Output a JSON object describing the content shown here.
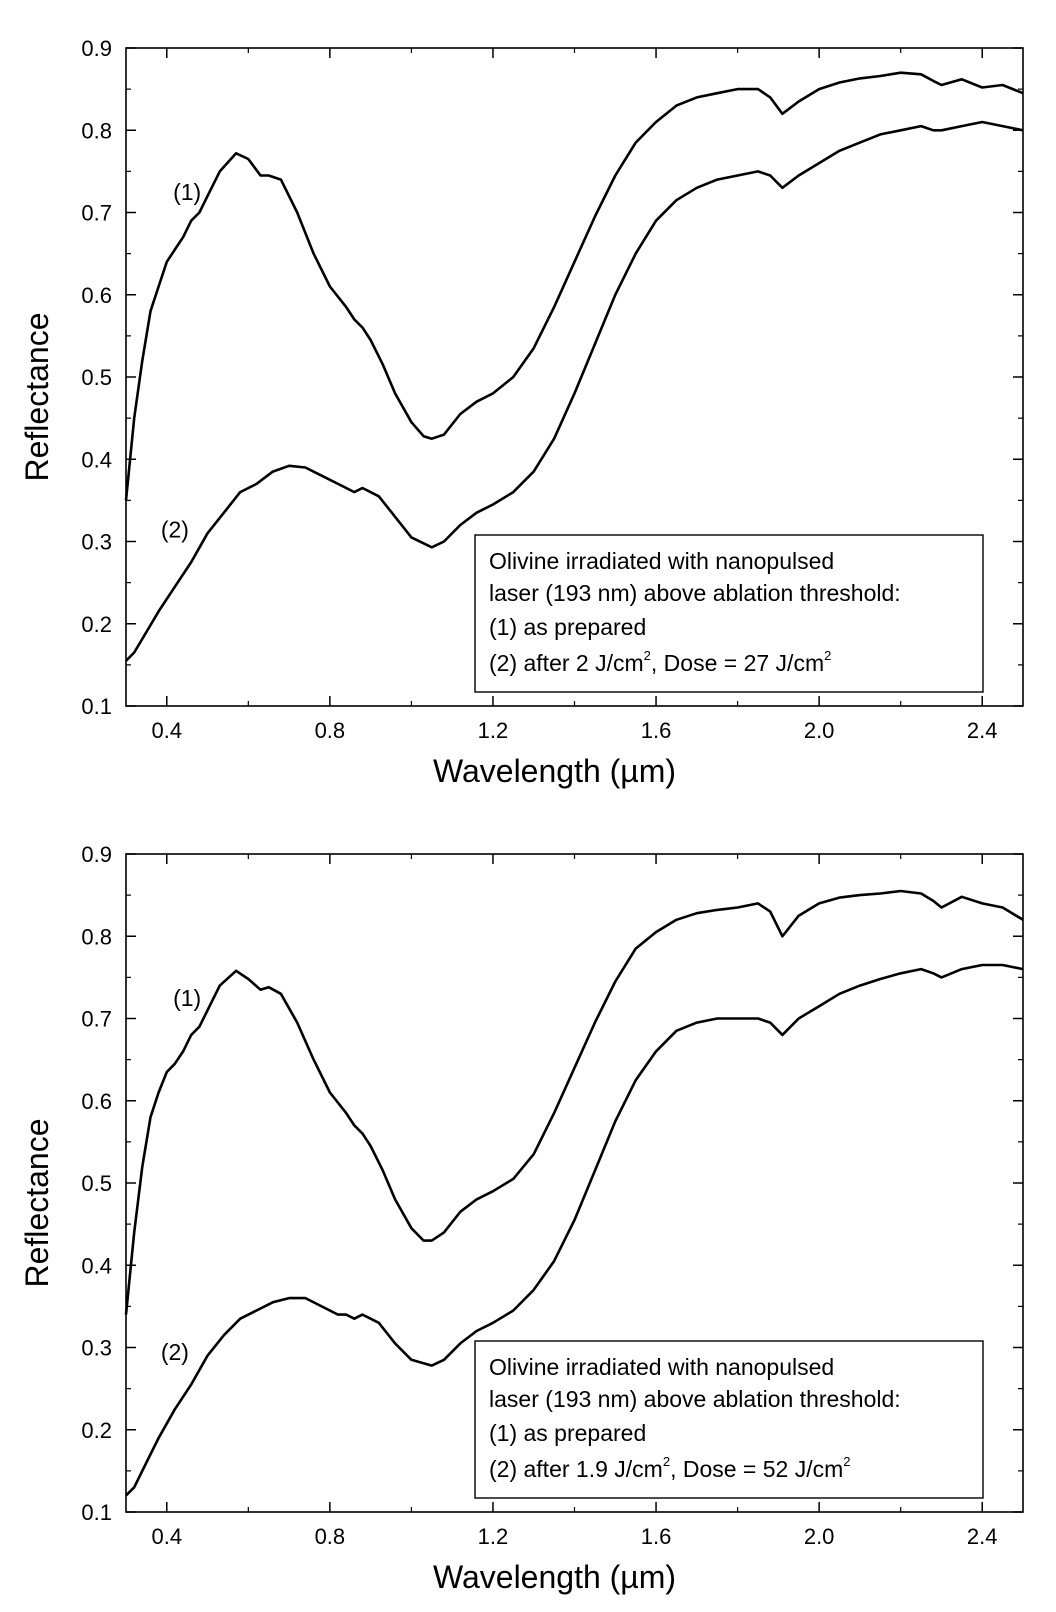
{
  "chart_data": [
    {
      "type": "line",
      "title": "",
      "xlabel": "Wavelength (µm)",
      "ylabel": "Reflectance",
      "xlim": [
        0.3,
        2.5
      ],
      "ylim": [
        0.1,
        0.9
      ],
      "xticks": [
        "0.4",
        "0.8",
        "1.2",
        "1.6",
        "2.0",
        "2.4"
      ],
      "yticks": [
        "0.1",
        "0.2",
        "0.3",
        "0.4",
        "0.5",
        "0.6",
        "0.7",
        "0.8",
        "0.9"
      ],
      "grid": false,
      "legend": {
        "placement": "bottom-right",
        "lines": [
          "Olivine irradiated with nanopulsed",
          "laser (193 nm) above ablation threshold:",
          "(1) as prepared"
        ],
        "line4": {
          "a": "(2) after 2 J/cm",
          "b": ", Dose = 27 J/cm",
          "sup": "2"
        }
      },
      "series": [
        {
          "name": "(1)",
          "label_at": [
            0.45,
            0.715
          ],
          "x": [
            0.3,
            0.32,
            0.34,
            0.36,
            0.38,
            0.4,
            0.42,
            0.44,
            0.46,
            0.48,
            0.5,
            0.53,
            0.57,
            0.6,
            0.63,
            0.65,
            0.68,
            0.72,
            0.76,
            0.8,
            0.84,
            0.86,
            0.88,
            0.9,
            0.93,
            0.96,
            1.0,
            1.03,
            1.05,
            1.08,
            1.12,
            1.16,
            1.2,
            1.25,
            1.3,
            1.35,
            1.4,
            1.45,
            1.5,
            1.55,
            1.6,
            1.65,
            1.7,
            1.75,
            1.8,
            1.85,
            1.88,
            1.91,
            1.95,
            2.0,
            2.05,
            2.1,
            2.15,
            2.2,
            2.25,
            2.28,
            2.3,
            2.35,
            2.4,
            2.45,
            2.5
          ],
          "values": [
            0.35,
            0.45,
            0.52,
            0.58,
            0.61,
            0.64,
            0.655,
            0.67,
            0.69,
            0.7,
            0.72,
            0.75,
            0.772,
            0.765,
            0.745,
            0.745,
            0.74,
            0.7,
            0.65,
            0.61,
            0.585,
            0.57,
            0.56,
            0.545,
            0.515,
            0.48,
            0.445,
            0.428,
            0.425,
            0.43,
            0.455,
            0.47,
            0.48,
            0.5,
            0.535,
            0.585,
            0.64,
            0.695,
            0.745,
            0.785,
            0.81,
            0.83,
            0.84,
            0.845,
            0.85,
            0.85,
            0.84,
            0.82,
            0.835,
            0.85,
            0.858,
            0.863,
            0.866,
            0.87,
            0.868,
            0.86,
            0.855,
            0.862,
            0.852,
            0.855,
            0.845
          ]
        },
        {
          "name": "(2)",
          "label_at": [
            0.42,
            0.305
          ],
          "x": [
            0.3,
            0.32,
            0.35,
            0.38,
            0.42,
            0.46,
            0.5,
            0.54,
            0.58,
            0.62,
            0.66,
            0.7,
            0.74,
            0.78,
            0.82,
            0.84,
            0.86,
            0.88,
            0.92,
            0.96,
            1.0,
            1.05,
            1.08,
            1.12,
            1.16,
            1.2,
            1.25,
            1.3,
            1.35,
            1.4,
            1.45,
            1.5,
            1.55,
            1.6,
            1.65,
            1.7,
            1.75,
            1.8,
            1.85,
            1.88,
            1.91,
            1.95,
            2.0,
            2.05,
            2.1,
            2.15,
            2.2,
            2.25,
            2.28,
            2.3,
            2.35,
            2.4,
            2.45,
            2.5
          ],
          "values": [
            0.155,
            0.165,
            0.19,
            0.215,
            0.245,
            0.275,
            0.31,
            0.335,
            0.36,
            0.37,
            0.385,
            0.392,
            0.39,
            0.38,
            0.37,
            0.365,
            0.36,
            0.365,
            0.355,
            0.33,
            0.305,
            0.293,
            0.3,
            0.32,
            0.335,
            0.345,
            0.36,
            0.385,
            0.425,
            0.48,
            0.54,
            0.6,
            0.65,
            0.69,
            0.715,
            0.73,
            0.74,
            0.745,
            0.75,
            0.745,
            0.73,
            0.745,
            0.76,
            0.775,
            0.785,
            0.795,
            0.8,
            0.805,
            0.8,
            0.8,
            0.805,
            0.81,
            0.805,
            0.8
          ]
        }
      ]
    },
    {
      "type": "line",
      "title": "",
      "xlabel": "Wavelength (µm)",
      "ylabel": "Reflectance",
      "xlim": [
        0.3,
        2.5
      ],
      "ylim": [
        0.1,
        0.9
      ],
      "xticks": [
        "0.4",
        "0.8",
        "1.2",
        "1.6",
        "2.0",
        "2.4"
      ],
      "yticks": [
        "0.1",
        "0.2",
        "0.3",
        "0.4",
        "0.5",
        "0.6",
        "0.7",
        "0.8",
        "0.9"
      ],
      "grid": false,
      "legend": {
        "placement": "bottom-right",
        "lines": [
          "Olivine irradiated with nanopulsed",
          "laser (193 nm) above ablation threshold:",
          "(1) as prepared"
        ],
        "line4": {
          "a": "(2) after 1.9 J/cm",
          "b": ", Dose = 52 J/cm",
          "sup": "2"
        }
      },
      "series": [
        {
          "name": "(1)",
          "label_at": [
            0.45,
            0.715
          ],
          "x": [
            0.3,
            0.32,
            0.34,
            0.36,
            0.38,
            0.4,
            0.42,
            0.44,
            0.46,
            0.48,
            0.5,
            0.53,
            0.57,
            0.6,
            0.63,
            0.65,
            0.68,
            0.72,
            0.76,
            0.8,
            0.84,
            0.86,
            0.88,
            0.9,
            0.93,
            0.96,
            1.0,
            1.03,
            1.05,
            1.08,
            1.12,
            1.16,
            1.2,
            1.25,
            1.3,
            1.35,
            1.4,
            1.45,
            1.5,
            1.55,
            1.6,
            1.65,
            1.7,
            1.75,
            1.8,
            1.85,
            1.88,
            1.91,
            1.95,
            2.0,
            2.05,
            2.1,
            2.15,
            2.2,
            2.25,
            2.28,
            2.3,
            2.35,
            2.4,
            2.45,
            2.5
          ],
          "values": [
            0.34,
            0.44,
            0.52,
            0.58,
            0.61,
            0.635,
            0.645,
            0.66,
            0.68,
            0.69,
            0.71,
            0.74,
            0.758,
            0.748,
            0.735,
            0.738,
            0.73,
            0.695,
            0.65,
            0.61,
            0.585,
            0.57,
            0.56,
            0.545,
            0.515,
            0.48,
            0.445,
            0.43,
            0.43,
            0.44,
            0.465,
            0.48,
            0.49,
            0.505,
            0.535,
            0.585,
            0.64,
            0.695,
            0.745,
            0.785,
            0.805,
            0.82,
            0.828,
            0.832,
            0.835,
            0.84,
            0.83,
            0.8,
            0.825,
            0.84,
            0.847,
            0.85,
            0.852,
            0.855,
            0.852,
            0.843,
            0.835,
            0.848,
            0.84,
            0.835,
            0.82
          ]
        },
        {
          "name": "(2)",
          "label_at": [
            0.42,
            0.285
          ],
          "x": [
            0.3,
            0.32,
            0.35,
            0.38,
            0.42,
            0.46,
            0.5,
            0.54,
            0.58,
            0.62,
            0.66,
            0.7,
            0.74,
            0.78,
            0.82,
            0.84,
            0.86,
            0.88,
            0.92,
            0.96,
            1.0,
            1.05,
            1.08,
            1.12,
            1.16,
            1.2,
            1.25,
            1.3,
            1.35,
            1.4,
            1.45,
            1.5,
            1.55,
            1.6,
            1.65,
            1.7,
            1.75,
            1.8,
            1.85,
            1.88,
            1.91,
            1.95,
            2.0,
            2.05,
            2.1,
            2.15,
            2.2,
            2.25,
            2.28,
            2.3,
            2.35,
            2.4,
            2.45,
            2.5
          ],
          "values": [
            0.12,
            0.13,
            0.16,
            0.19,
            0.225,
            0.255,
            0.29,
            0.315,
            0.335,
            0.345,
            0.355,
            0.36,
            0.36,
            0.35,
            0.34,
            0.34,
            0.335,
            0.34,
            0.33,
            0.305,
            0.285,
            0.278,
            0.285,
            0.305,
            0.32,
            0.33,
            0.345,
            0.37,
            0.405,
            0.455,
            0.515,
            0.575,
            0.625,
            0.66,
            0.685,
            0.695,
            0.7,
            0.7,
            0.7,
            0.695,
            0.68,
            0.7,
            0.715,
            0.73,
            0.74,
            0.748,
            0.755,
            0.76,
            0.755,
            0.75,
            0.76,
            0.765,
            0.765,
            0.76
          ]
        }
      ]
    }
  ]
}
